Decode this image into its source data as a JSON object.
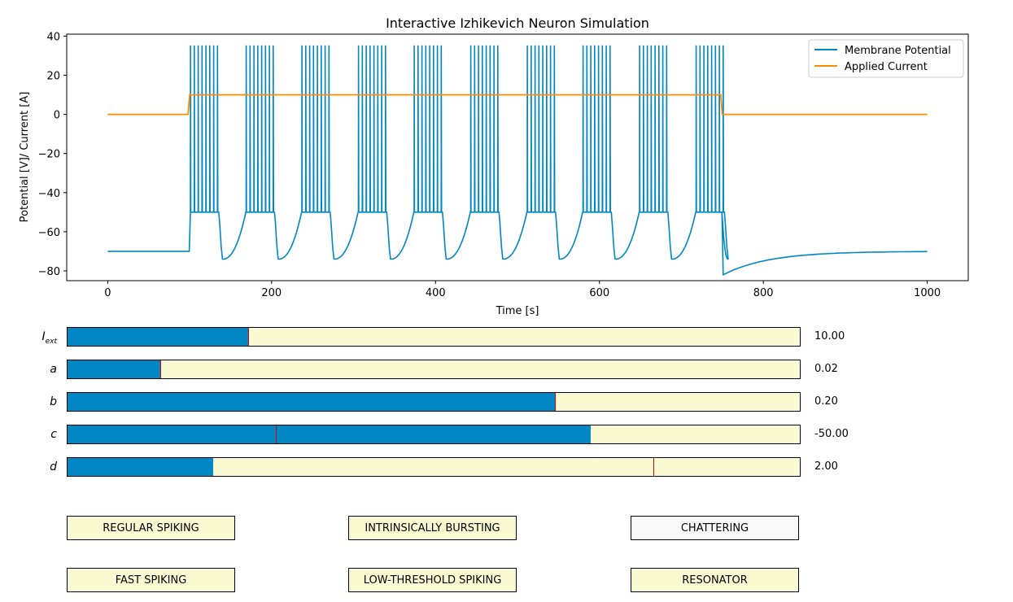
{
  "chart_data": {
    "type": "line",
    "title": "Interactive Izhikevich Neuron Simulation",
    "xlabel": "Time [s]",
    "ylabel": "Potential [V]/ Current [A]",
    "xlim": [
      -50,
      1050
    ],
    "ylim": [
      -85,
      41
    ],
    "xticks": [
      0,
      200,
      400,
      600,
      800,
      1000
    ],
    "yticks": [
      -80,
      -60,
      -40,
      -20,
      0,
      20,
      40
    ],
    "grid": false,
    "legend_position": "top-right",
    "series": [
      {
        "name": "Membrane Potential",
        "color": "#0087c4",
        "baseline": -70,
        "reset": -50,
        "peak": 35,
        "after_burst_min": -74,
        "final_min": -82,
        "burst_starts": [
          101,
          169,
          237,
          306,
          374,
          443,
          512,
          580,
          649,
          718
        ],
        "spikes_per_burst": 8,
        "burst_duration": 33,
        "stimulus_on": 100,
        "stimulus_off": 750,
        "t_end": 1000
      },
      {
        "name": "Applied Current",
        "color": "#ff8c00",
        "x": [
          0,
          98,
          100,
          748,
          750,
          1000
        ],
        "y": [
          0,
          0,
          10,
          10,
          0,
          0
        ]
      }
    ]
  },
  "sliders": [
    {
      "label": "I",
      "sub": "ext",
      "value": "10.00",
      "fill": 0.247,
      "init": 0.247
    },
    {
      "label": "a",
      "sub": "",
      "value": "0.02",
      "fill": 0.127,
      "init": 0.127
    },
    {
      "label": "b",
      "sub": "",
      "value": "0.20",
      "fill": 0.666,
      "init": 0.666
    },
    {
      "label": "c",
      "sub": "",
      "value": "-50.00",
      "fill": 0.714,
      "init": 0.284
    },
    {
      "label": "d",
      "sub": "",
      "value": "2.00",
      "fill": 0.199,
      "init": 0.8
    }
  ],
  "buttons": [
    {
      "label": "REGULAR SPIKING",
      "active": false
    },
    {
      "label": "INTRINSICALLY BURSTING",
      "active": false
    },
    {
      "label": "CHATTERING",
      "active": true
    },
    {
      "label": "FAST SPIKING",
      "active": false
    },
    {
      "label": "LOW-THRESHOLD SPIKING",
      "active": false
    },
    {
      "label": "RESONATOR",
      "active": false
    }
  ]
}
